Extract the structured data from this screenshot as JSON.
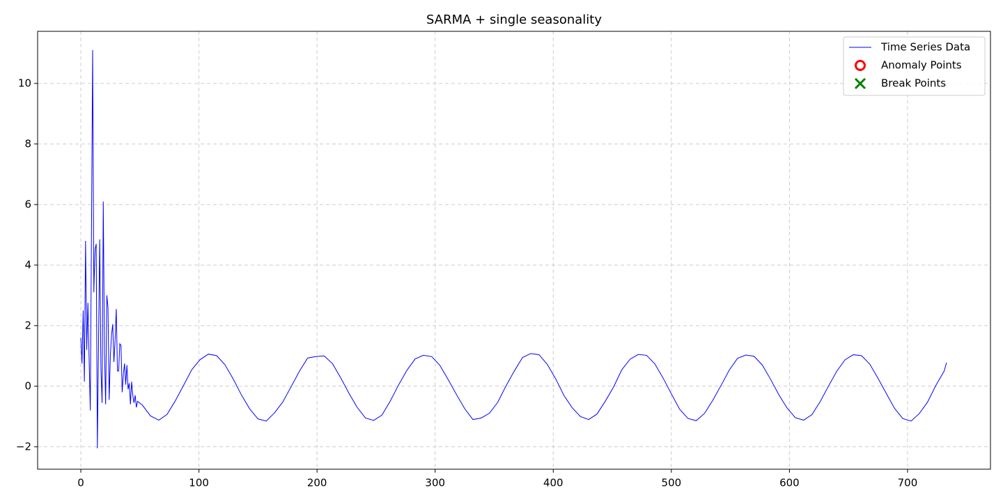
{
  "chart_data": {
    "type": "line",
    "title": "SARMA + single seasonality",
    "series": [
      {
        "name": "Time Series Data",
        "color": "#0000ff",
        "marker": "line",
        "x": [
          0,
          1,
          2,
          3,
          4,
          5,
          6,
          7,
          8,
          9,
          10,
          11,
          12,
          13,
          14,
          15,
          16,
          17,
          18,
          19,
          20,
          21,
          22,
          23,
          24,
          25,
          26,
          27,
          28,
          29,
          30,
          31,
          32,
          33,
          34,
          35,
          36,
          37,
          38,
          39,
          40,
          41,
          42,
          43,
          44,
          45,
          46,
          47,
          48,
          52,
          59,
          66,
          73,
          80,
          87,
          94,
          101,
          108,
          115,
          122,
          129,
          136,
          143,
          150,
          157,
          164,
          171,
          178,
          185,
          192,
          199,
          206,
          213,
          220,
          227,
          234,
          241,
          248,
          255,
          262,
          269,
          276,
          283,
          290,
          297,
          304,
          311,
          318,
          325,
          332,
          339,
          346,
          353,
          360,
          367,
          374,
          381,
          388,
          395,
          402,
          409,
          416,
          423,
          430,
          437,
          444,
          451,
          458,
          465,
          472,
          479,
          486,
          493,
          500,
          507,
          514,
          521,
          528,
          535,
          542,
          549,
          556,
          563,
          570,
          577,
          584,
          591,
          598,
          605,
          612,
          619,
          626,
          633,
          640,
          647,
          654,
          661,
          668,
          675,
          682,
          689,
          696,
          703,
          710,
          717,
          724,
          731,
          733
        ],
        "values": [
          1.6,
          0.75,
          2.5,
          0.15,
          4.8,
          1.2,
          2.75,
          0.9,
          -0.8,
          5.0,
          11.1,
          3.1,
          4.5,
          4.7,
          -2.05,
          1.5,
          4.85,
          0.6,
          -0.55,
          6.1,
          1.2,
          -0.6,
          3.0,
          2.6,
          -0.45,
          1.0,
          1.7,
          2.05,
          0.8,
          1.5,
          2.55,
          0.5,
          0.5,
          1.4,
          1.35,
          -0.2,
          0.4,
          0.75,
          0.05,
          0.7,
          -0.1,
          0.1,
          -0.6,
          0.15,
          -0.3,
          -0.55,
          -0.3,
          -0.7,
          -0.5,
          -0.62,
          -0.98,
          -1.12,
          -0.93,
          -0.48,
          0.03,
          0.55,
          0.88,
          1.06,
          1.01,
          0.71,
          0.24,
          -0.29,
          -0.75,
          -1.08,
          -1.15,
          -0.88,
          -0.52,
          -0.02,
          0.49,
          0.93,
          0.98,
          1.0,
          0.75,
          0.28,
          -0.23,
          -0.7,
          -1.05,
          -1.13,
          -0.95,
          -0.49,
          0.04,
          0.52,
          0.9,
          1.02,
          0.98,
          0.69,
          0.22,
          -0.27,
          -0.74,
          -1.1,
          -1.05,
          -0.89,
          -0.53,
          0.01,
          0.5,
          0.95,
          1.08,
          1.04,
          0.72,
          0.25,
          -0.3,
          -0.71,
          -1.0,
          -1.1,
          -0.92,
          -0.5,
          -0.03,
          0.54,
          0.89,
          1.05,
          1.02,
          0.74,
          0.27,
          -0.25,
          -0.76,
          -1.06,
          -1.14,
          -0.9,
          -0.47,
          0.02,
          0.53,
          0.92,
          1.03,
          0.99,
          0.7,
          0.23,
          -0.28,
          -0.72,
          -1.04,
          -1.12,
          -0.94,
          -0.51,
          0.0,
          0.49,
          0.87,
          1.04,
          1.01,
          0.73,
          0.26,
          -0.24,
          -0.73,
          -1.07,
          -1.15,
          -0.9,
          -0.52,
          0.03,
          0.5,
          0.78
        ]
      },
      {
        "name": "Anomaly Points",
        "color": "#ff0000",
        "marker": "circle",
        "x": [],
        "values": []
      },
      {
        "name": "Break Points",
        "color": "#008000",
        "marker": "x",
        "x": [],
        "values": []
      }
    ],
    "xlim": [
      -36.6,
      770.2
    ],
    "ylim": [
      -2.74,
      11.72
    ],
    "xticks": [
      0,
      100,
      200,
      300,
      400,
      500,
      600,
      700
    ],
    "yticks": [
      {
        "value": -2,
        "label": "−2"
      },
      0,
      2,
      4,
      6,
      8,
      10
    ],
    "grid": true,
    "legend": "upper-right"
  }
}
